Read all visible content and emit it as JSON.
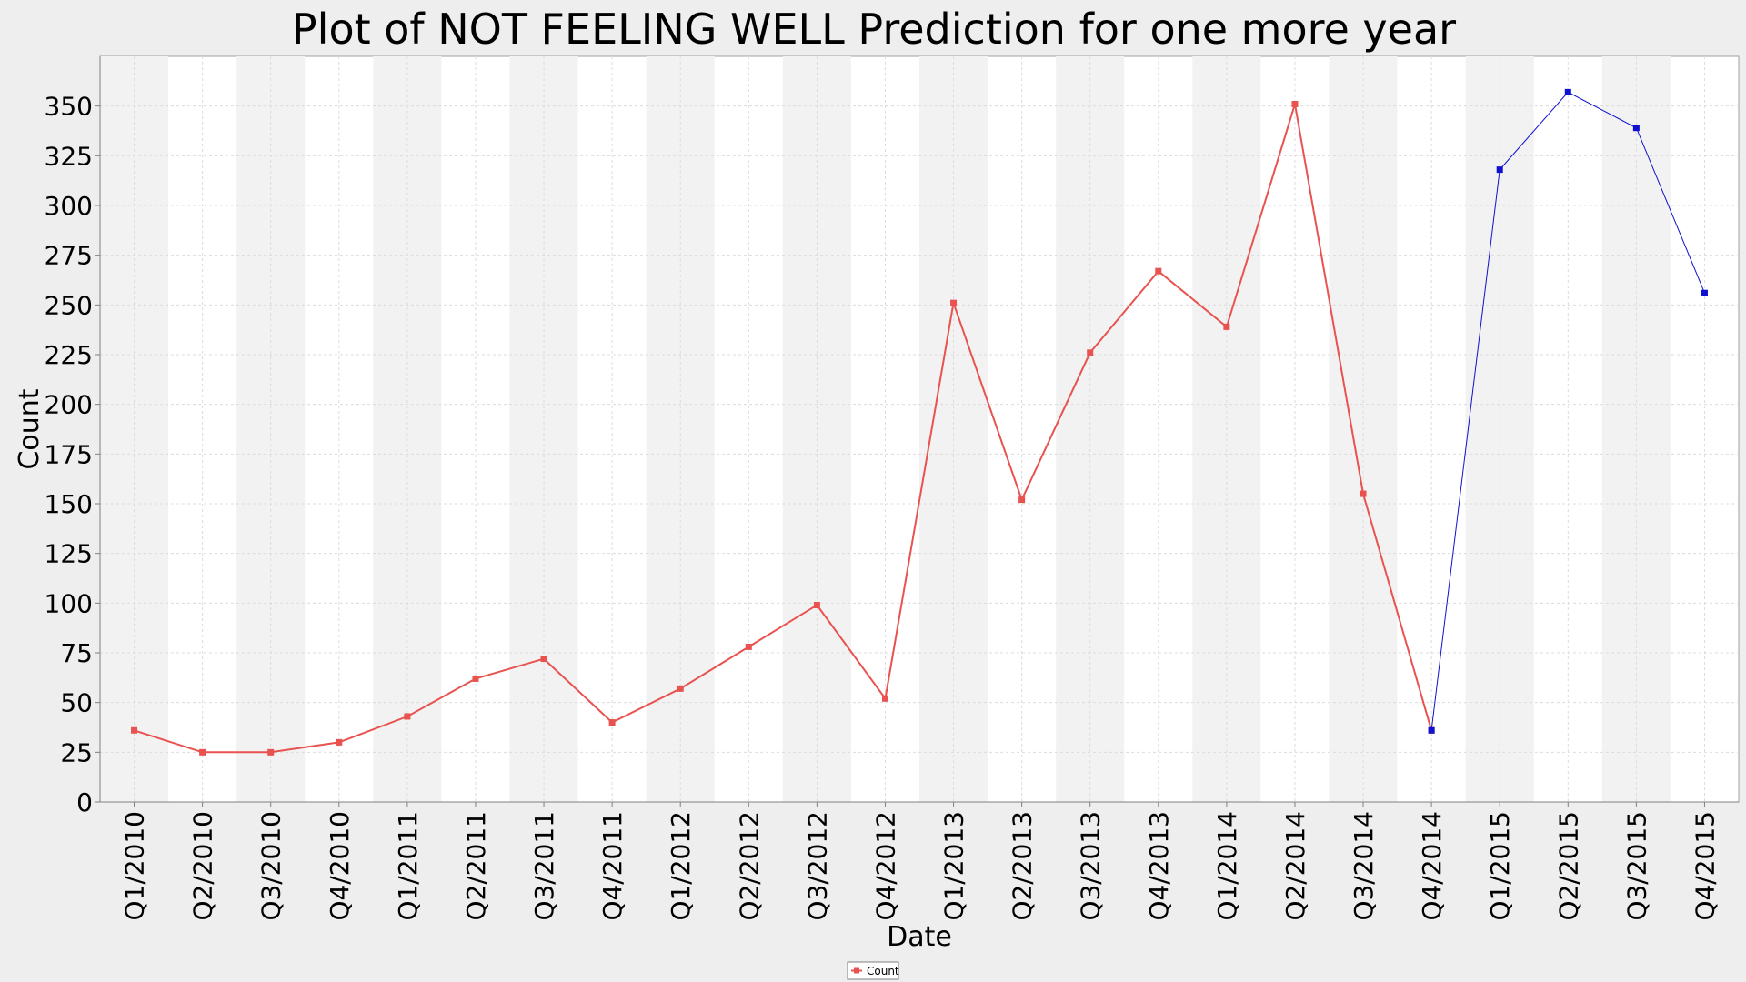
{
  "chart_data": {
    "type": "line",
    "title": "Plot of NOT FEELING WELL Prediction for one more year",
    "xlabel": "Date",
    "ylabel": "Count",
    "ylim": [
      0,
      375
    ],
    "yticks": [
      0,
      25,
      50,
      75,
      100,
      125,
      150,
      175,
      200,
      225,
      250,
      275,
      300,
      325,
      350
    ],
    "grid": true,
    "legend_position": "bottom-center",
    "categories": [
      "Q1/2010",
      "Q2/2010",
      "Q3/2010",
      "Q4/2010",
      "Q1/2011",
      "Q2/2011",
      "Q3/2011",
      "Q4/2011",
      "Q1/2012",
      "Q2/2012",
      "Q3/2012",
      "Q4/2012",
      "Q1/2013",
      "Q2/2013",
      "Q3/2013",
      "Q4/2013",
      "Q1/2014",
      "Q2/2014",
      "Q3/2014",
      "Q4/2014",
      "Q1/2015",
      "Q2/2015",
      "Q3/2015",
      "Q4/2015"
    ],
    "series": [
      {
        "name": "Count",
        "color": "#e8524f",
        "values": [
          36,
          25,
          25,
          30,
          43,
          62,
          72,
          40,
          57,
          78,
          99,
          52,
          251,
          152,
          226,
          267,
          239,
          351,
          155,
          36,
          null,
          null,
          null,
          null
        ]
      },
      {
        "color": "#1010d0",
        "values": [
          null,
          null,
          null,
          null,
          null,
          null,
          null,
          null,
          null,
          null,
          null,
          null,
          null,
          null,
          null,
          null,
          null,
          null,
          null,
          36,
          318,
          357,
          339,
          256
        ]
      }
    ]
  }
}
